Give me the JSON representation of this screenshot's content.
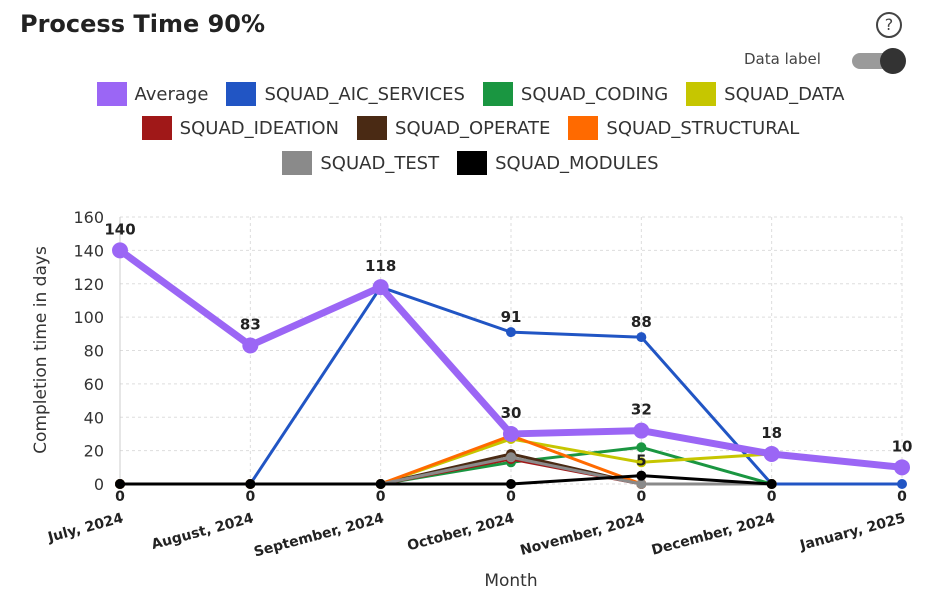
{
  "title": "Process Time 90%",
  "help_icon": "question-circle-icon",
  "data_label_toggle": {
    "label": "Data label",
    "on": true
  },
  "chart_data": {
    "type": "line",
    "xlabel": "Month",
    "ylabel": "Completion time in days",
    "ylim": [
      0,
      160
    ],
    "yticks": [
      0,
      20,
      40,
      60,
      80,
      100,
      120,
      140,
      160
    ],
    "grid": true,
    "legend_position": "top",
    "zero_labels_text": "0",
    "categories": [
      "July, 2024",
      "August, 2024",
      "September, 2024",
      "October, 2024",
      "November, 2024",
      "December, 2024",
      "January, 2025"
    ],
    "series": [
      {
        "name": "SQUAD_AIC_SERVICES",
        "color": "#2155c4",
        "values": [
          0,
          0,
          118,
          91,
          88,
          0,
          0
        ],
        "labels": true
      },
      {
        "name": "SQUAD_CODING",
        "color": "#1a9641",
        "values": [
          0,
          0,
          0,
          13,
          22,
          0,
          null
        ],
        "labels": false
      },
      {
        "name": "SQUAD_DATA",
        "color": "#c6c600",
        "values": [
          0,
          0,
          0,
          27,
          13,
          18,
          null
        ],
        "labels": false
      },
      {
        "name": "SQUAD_IDEATION",
        "color": "#a01818",
        "values": [
          0,
          0,
          0,
          15,
          0,
          0,
          null
        ],
        "labels": false
      },
      {
        "name": "SQUAD_OPERATE",
        "color": "#4a2a14",
        "values": [
          0,
          0,
          0,
          18,
          0,
          0,
          null
        ],
        "labels": false
      },
      {
        "name": "SQUAD_STRUCTURAL",
        "color": "#ff6a00",
        "values": [
          0,
          0,
          0,
          29,
          0,
          0,
          null
        ],
        "labels": false
      },
      {
        "name": "SQUAD_TEST",
        "color": "#8a8a8a",
        "values": [
          0,
          0,
          0,
          16,
          0,
          0,
          null
        ],
        "labels": false
      },
      {
        "name": "SQUAD_MODULES",
        "color": "#000000",
        "values": [
          0,
          0,
          0,
          0,
          5,
          0,
          null
        ],
        "labels": true
      },
      {
        "name": "Average",
        "color": "#9b66f5",
        "values": [
          140,
          83,
          118,
          30,
          32,
          18,
          10
        ],
        "labels": true,
        "thick": true
      }
    ],
    "legend_order": [
      [
        "Average",
        "SQUAD_AIC_SERVICES",
        "SQUAD_CODING",
        "SQUAD_DATA"
      ],
      [
        "SQUAD_IDEATION",
        "SQUAD_OPERATE",
        "SQUAD_STRUCTURAL"
      ],
      [
        "SQUAD_TEST",
        "SQUAD_MODULES"
      ]
    ]
  }
}
